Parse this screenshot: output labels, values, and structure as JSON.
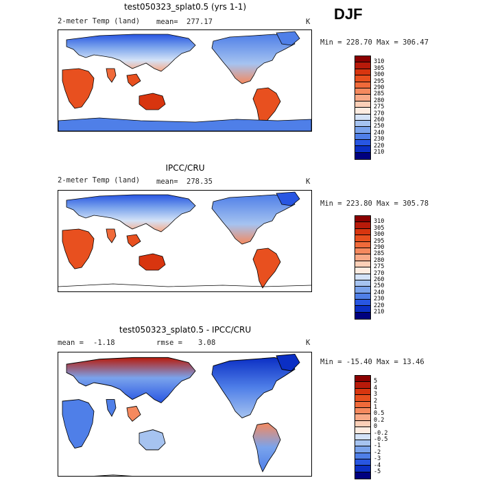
{
  "season": "DJF",
  "panels": [
    {
      "title": "test050323_splat0.5 (yrs 1-1)",
      "left_label": "2-meter Temp (land)",
      "mean_label": "mean=",
      "mean_value": "277.17",
      "units": "K",
      "minmax": "Min = 228.70 Max = 306.47",
      "colorbar_labels": [
        "310",
        "305",
        "300",
        "295",
        "290",
        "285",
        "280",
        "275",
        "270",
        "260",
        "250",
        "240",
        "230",
        "220",
        "210"
      ],
      "colorbar_colors": [
        "#8b0000",
        "#b81a0a",
        "#d8350f",
        "#e8501f",
        "#f06a3a",
        "#f5895e",
        "#f8a987",
        "#fbcfb7",
        "#fdece1",
        "#d3e2f7",
        "#a6c3f0",
        "#7aa3ec",
        "#4f7fe8",
        "#2856e2",
        "#0b2fc4",
        "#00007f"
      ],
      "map_kind": "temp_model"
    },
    {
      "title": "IPCC/CRU",
      "left_label": "2-meter Temp (land)",
      "mean_label": "mean=",
      "mean_value": "278.35",
      "units": "K",
      "minmax": "Min = 223.80 Max = 305.78",
      "colorbar_labels": [
        "310",
        "305",
        "300",
        "295",
        "290",
        "285",
        "280",
        "275",
        "270",
        "260",
        "250",
        "240",
        "230",
        "220",
        "210"
      ],
      "colorbar_colors": [
        "#8b0000",
        "#b81a0a",
        "#d8350f",
        "#e8501f",
        "#f06a3a",
        "#f5895e",
        "#f8a987",
        "#fbcfb7",
        "#fdece1",
        "#d3e2f7",
        "#a6c3f0",
        "#7aa3ec",
        "#4f7fe8",
        "#2856e2",
        "#0b2fc4",
        "#00007f"
      ],
      "map_kind": "temp_obs"
    },
    {
      "title": "test050323_splat0.5 - IPCC/CRU",
      "left_label": "mean =",
      "mean_label": "rmse =",
      "mean_value": "-1.18",
      "rmse_value": "3.08",
      "units": "K",
      "minmax": "Min = -15.40 Max =  13.46",
      "colorbar_labels": [
        "5",
        "4",
        "3",
        "2",
        "1",
        "0.5",
        "0.2",
        "0",
        "-0.2",
        "-0.5",
        "-1",
        "-2",
        "-3",
        "-4",
        "-5"
      ],
      "colorbar_colors": [
        "#8b0000",
        "#b81a0a",
        "#d8350f",
        "#e8501f",
        "#f06a3a",
        "#f5895e",
        "#f8a987",
        "#fbcfb7",
        "#fdece1",
        "#d3e2f7",
        "#a6c3f0",
        "#7aa3ec",
        "#4f7fe8",
        "#2856e2",
        "#0b2fc4",
        "#00007f"
      ],
      "map_kind": "diff"
    }
  ]
}
